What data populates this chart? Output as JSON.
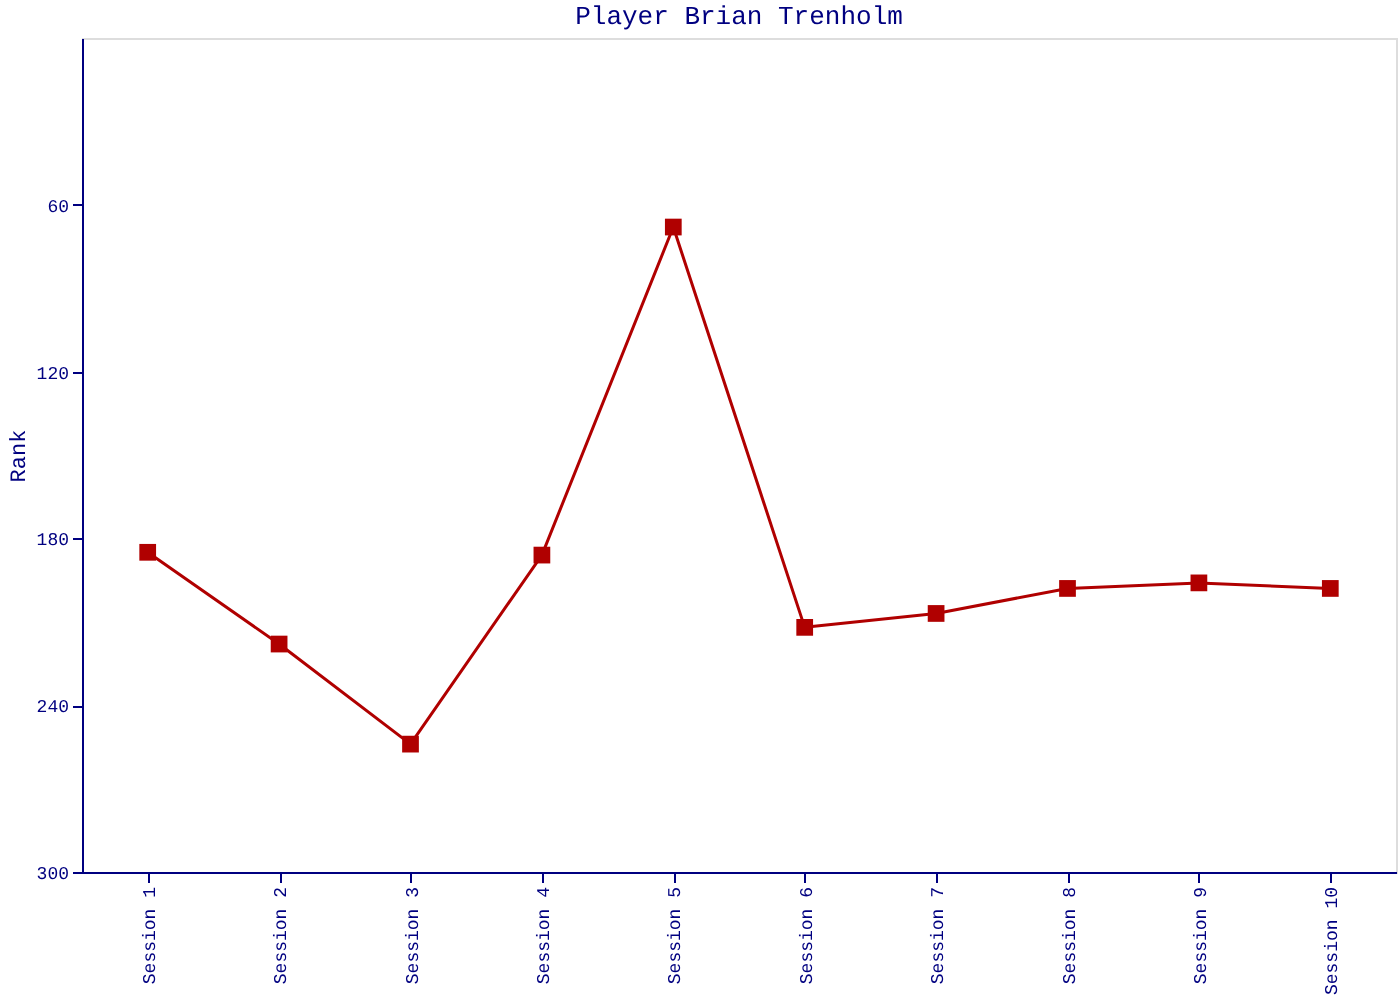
{
  "chart_data": {
    "type": "line",
    "title": "Player Brian Trenholm",
    "ylabel": "Rank",
    "categories": [
      "Session 1",
      "Session 2",
      "Session 3",
      "Session 4",
      "Session 5",
      "Session 6",
      "Session 7",
      "Session 8",
      "Session 9",
      "Session 10"
    ],
    "series": [
      {
        "color": "#b00000",
        "values": [
          185,
          218,
          254,
          186,
          68,
          212,
          207,
          198,
          196,
          198
        ]
      }
    ],
    "ylim": [
      300,
      0
    ],
    "yticks": [
      60,
      120,
      180,
      240,
      300
    ],
    "marker": "square",
    "line_style": "solid"
  }
}
